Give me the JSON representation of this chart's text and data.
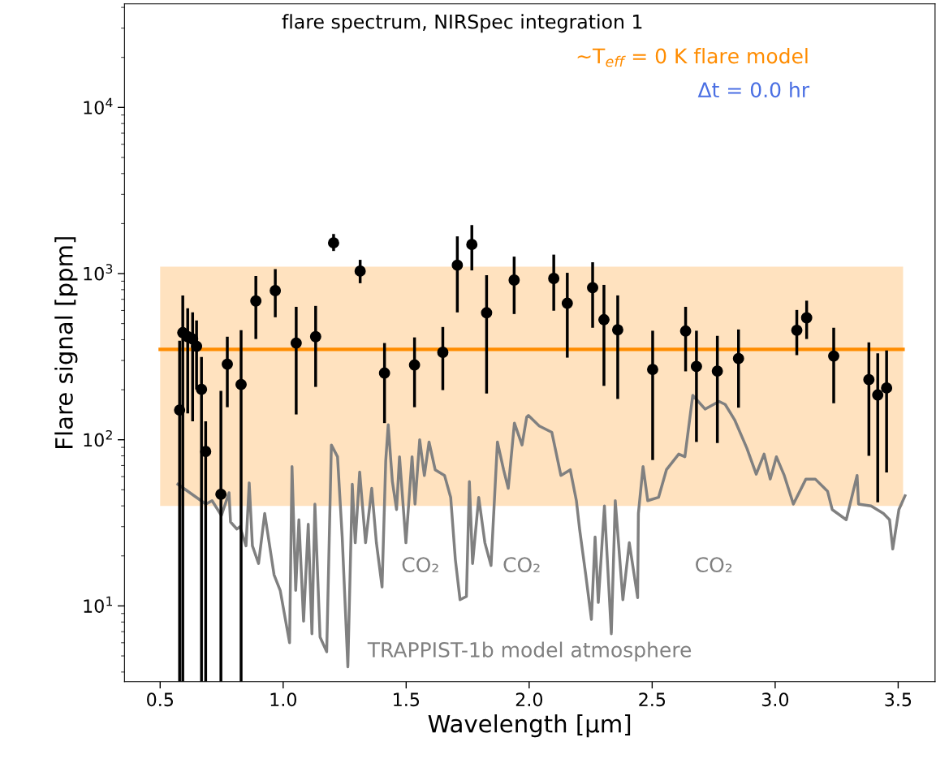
{
  "chart_data": {
    "type": "scatter",
    "title": "flare spectrum, NIRSpec integration 1",
    "xlabel": "Wavelength [μm]",
    "ylabel": "Flare signal [ppm]",
    "log": "y",
    "grid": false,
    "legend": false,
    "xlim": [
      0.355,
      3.65
    ],
    "ylim": [
      3.5,
      42000
    ],
    "xticks": [
      {
        "value": 0.5,
        "label": "0.5"
      },
      {
        "value": 1,
        "label": "1.0"
      },
      {
        "value": 1.5,
        "label": "1.5"
      },
      {
        "value": 2,
        "label": "2.0"
      },
      {
        "value": 2.5,
        "label": "2.5"
      },
      {
        "value": 3,
        "label": "3.0"
      },
      {
        "value": 3.5,
        "label": "3.5"
      }
    ],
    "yticks": [
      {
        "value": 10,
        "label": "10$^{1}$"
      },
      {
        "value": 100,
        "label": "10$^{2}$"
      },
      {
        "value": 1000,
        "label": "10$^{3}$"
      },
      {
        "value": 10000,
        "label": "10$^{4}$"
      }
    ],
    "annotations": [
      "Δt = 0.0 hr",
      "CO₂",
      "CO₂",
      "CO₂"
    ],
    "series": [
      {
        "type": "line",
        "name": "~T$_{eff}$ = 0 K flare model",
        "color": "#ff8c00",
        "x": [
          0.5,
          3.52
        ],
        "values": [
          350,
          350
        ],
        "lower": [
          40,
          40
        ],
        "upper": [
          1100,
          1100
        ]
      },
      {
        "type": "line",
        "name": "TRAPPIST-1b model atmosphere",
        "color": "#808080",
        "x": [
          0.572,
          0.686,
          0.711,
          0.749,
          0.78,
          0.786,
          0.812,
          0.824,
          0.849,
          0.862,
          0.875,
          0.9,
          0.925,
          0.963,
          0.988,
          1.026,
          1.036,
          1.051,
          1.064,
          1.083,
          1.102,
          1.117,
          1.129,
          1.15,
          1.177,
          1.196,
          1.221,
          1.24,
          1.263,
          1.281,
          1.293,
          1.311,
          1.335,
          1.36,
          1.379,
          1.402,
          1.417,
          1.427,
          1.444,
          1.461,
          1.473,
          1.499,
          1.524,
          1.536,
          1.555,
          1.574,
          1.593,
          1.618,
          1.656,
          1.681,
          1.7,
          1.719,
          1.745,
          1.757,
          1.77,
          1.795,
          1.82,
          1.845,
          1.871,
          1.896,
          1.915,
          1.94,
          1.971,
          1.99,
          1.997,
          2.041,
          2.092,
          2.129,
          2.167,
          2.192,
          2.205,
          2.23,
          2.253,
          2.268,
          2.281,
          2.306,
          2.334,
          2.35,
          2.381,
          2.407,
          2.441,
          2.444,
          2.463,
          2.482,
          2.526,
          2.558,
          2.608,
          2.633,
          2.665,
          2.715,
          2.772,
          2.797,
          2.835,
          2.885,
          2.923,
          2.955,
          2.98,
          3.005,
          3.037,
          3.074,
          3.125,
          3.163,
          3.213,
          3.232,
          3.289,
          3.333,
          3.339,
          3.39,
          3.44,
          3.465,
          3.478,
          3.503,
          3.528
        ],
        "values": [
          54,
          41,
          43,
          35,
          48,
          32,
          29,
          30,
          23,
          55,
          23,
          18,
          36,
          15.4,
          12.4,
          6.0,
          69,
          12.4,
          33,
          8.1,
          31,
          6.8,
          41,
          6.5,
          5.3,
          93,
          79,
          26,
          4.3,
          54,
          24,
          64,
          24,
          51,
          24,
          13,
          75,
          123,
          56,
          38,
          79,
          24,
          79,
          41,
          100,
          61,
          97,
          66,
          61,
          45,
          19,
          10.9,
          11.4,
          56,
          18,
          45,
          24,
          17.5,
          97,
          66,
          51,
          126,
          93,
          137,
          140,
          121,
          111,
          61,
          66,
          43,
          29,
          15.4,
          8.3,
          26,
          10.5,
          40,
          6.8,
          43,
          10.9,
          24,
          11.2,
          36,
          69,
          43,
          45,
          66,
          82,
          79,
          185,
          153,
          170,
          163,
          132,
          89,
          62,
          82,
          58,
          79,
          61,
          41,
          58,
          58,
          49,
          38,
          33,
          61,
          41,
          40,
          36,
          33,
          22,
          38,
          46
        ]
      },
      {
        "color": "#000000",
        "marker": "circle",
        "x": [
          0.579,
          0.592,
          0.612,
          0.632,
          0.648,
          0.668,
          0.685,
          0.747,
          0.773,
          0.829,
          0.889,
          0.968,
          1.053,
          1.132,
          1.205,
          1.313,
          1.412,
          1.534,
          1.649,
          1.708,
          1.767,
          1.827,
          1.939,
          2.1,
          2.155,
          2.258,
          2.304,
          2.36,
          2.502,
          2.636,
          2.68,
          2.765,
          2.851,
          3.088,
          3.128,
          3.238,
          3.381,
          3.417,
          3.453
        ],
        "values": [
          151,
          441,
          417,
          404,
          365,
          201,
          85,
          47,
          285,
          215,
          684,
          790,
          382,
          417,
          1531,
          1035,
          252,
          282,
          336,
          1124,
          1497,
          581,
          914,
          935,
          663,
          822,
          528,
          459,
          265,
          451,
          276,
          259,
          308,
          456,
          542,
          319,
          230,
          186,
          205
        ],
        "errors": [
          [
            3.5,
            394
          ],
          [
            3.5,
            739
          ],
          [
            144,
            618
          ],
          [
            129,
            584
          ],
          [
            201,
            522
          ],
          [
            3.5,
            315
          ],
          [
            3.5,
            129
          ],
          [
            3.5,
            197
          ],
          [
            157,
            417
          ],
          [
            3.5,
            456
          ],
          [
            404,
            967
          ],
          [
            546,
            1064
          ],
          [
            142,
            631
          ],
          [
            208,
            639
          ],
          [
            1368,
            1731
          ],
          [
            875,
            1210
          ],
          [
            126,
            382
          ],
          [
            157,
            413
          ],
          [
            199,
            477
          ],
          [
            584,
            1675
          ],
          [
            1045,
            1959
          ],
          [
            190,
            977
          ],
          [
            571,
            1265
          ],
          [
            598,
            1301
          ],
          [
            312,
            1011
          ],
          [
            472,
            1170
          ],
          [
            211,
            855
          ],
          [
            176,
            739
          ],
          [
            75.5,
            453
          ],
          [
            258,
            631
          ],
          [
            97,
            453
          ],
          [
            95.5,
            422
          ],
          [
            156,
            461
          ],
          [
            323,
            604
          ],
          [
            404,
            687
          ],
          [
            166,
            472
          ],
          [
            80,
            386
          ],
          [
            42,
            331
          ],
          [
            63.5,
            345
          ]
        ]
      }
    ]
  }
}
